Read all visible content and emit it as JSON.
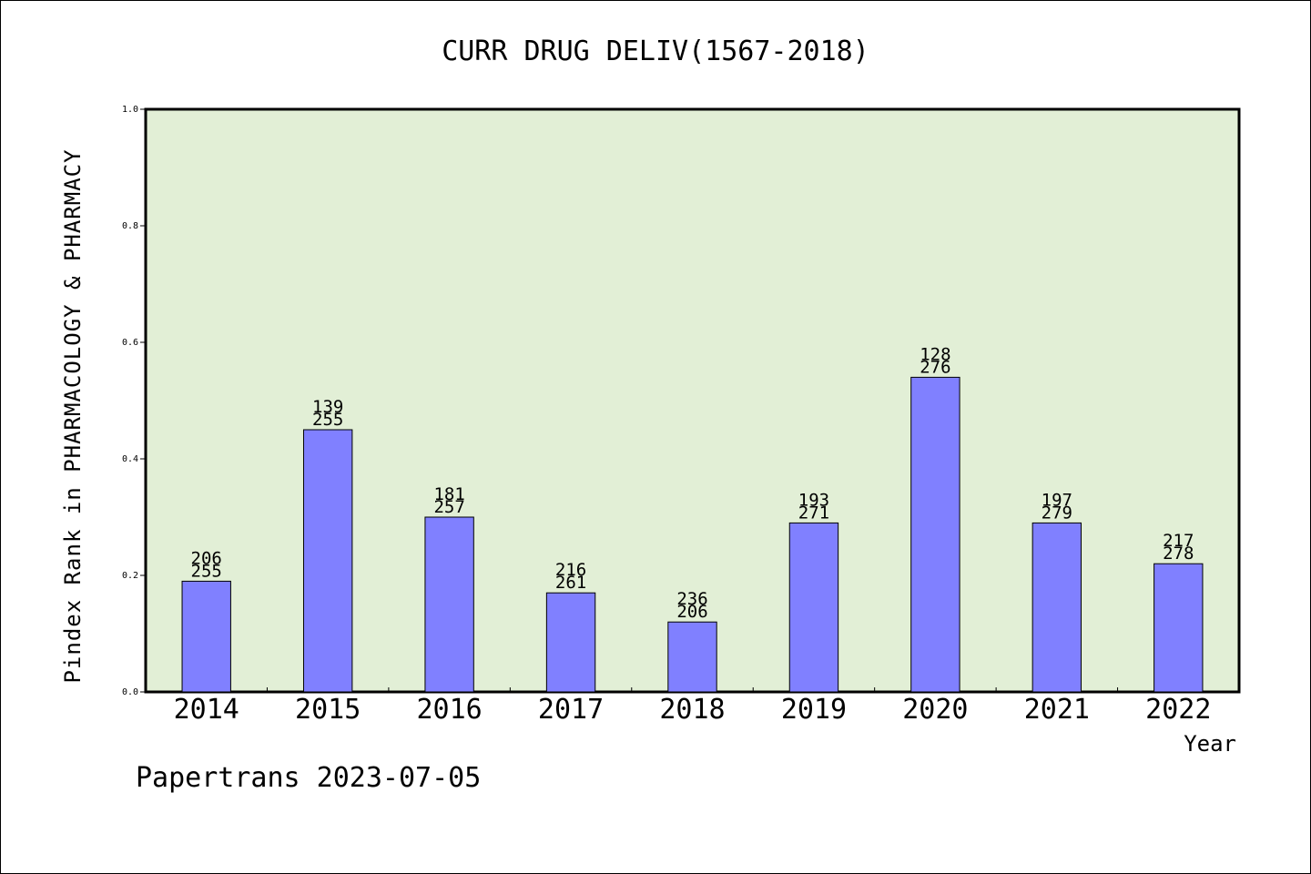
{
  "chart_data": {
    "type": "bar",
    "title": "CURR DRUG DELIV(1567-2018)",
    "xlabel": "Year",
    "ylabel": "Pindex Rank in PHARMACOLOGY & PHARMACY",
    "categories": [
      "2014",
      "2015",
      "2016",
      "2017",
      "2018",
      "2019",
      "2020",
      "2021",
      "2022"
    ],
    "values": [
      0.19,
      0.45,
      0.3,
      0.17,
      0.12,
      0.29,
      0.54,
      0.29,
      0.22
    ],
    "labels_top": [
      "206",
      "139",
      "181",
      "216",
      "236",
      "193",
      "128",
      "197",
      "217"
    ],
    "labels_bottom": [
      "255",
      "255",
      "257",
      "261",
      "206",
      "271",
      "276",
      "279",
      "278"
    ],
    "ylim": [
      0,
      1.0
    ],
    "yticks": [
      "0.0",
      "0.2",
      "0.4",
      "0.6",
      "0.8",
      "1.0"
    ],
    "grid": false,
    "colors": {
      "plot_background": "#e2efd6",
      "bar_fill": "#8080ff",
      "bar_stroke": "#000000"
    }
  },
  "footer": "Papertrans 2023-07-05"
}
